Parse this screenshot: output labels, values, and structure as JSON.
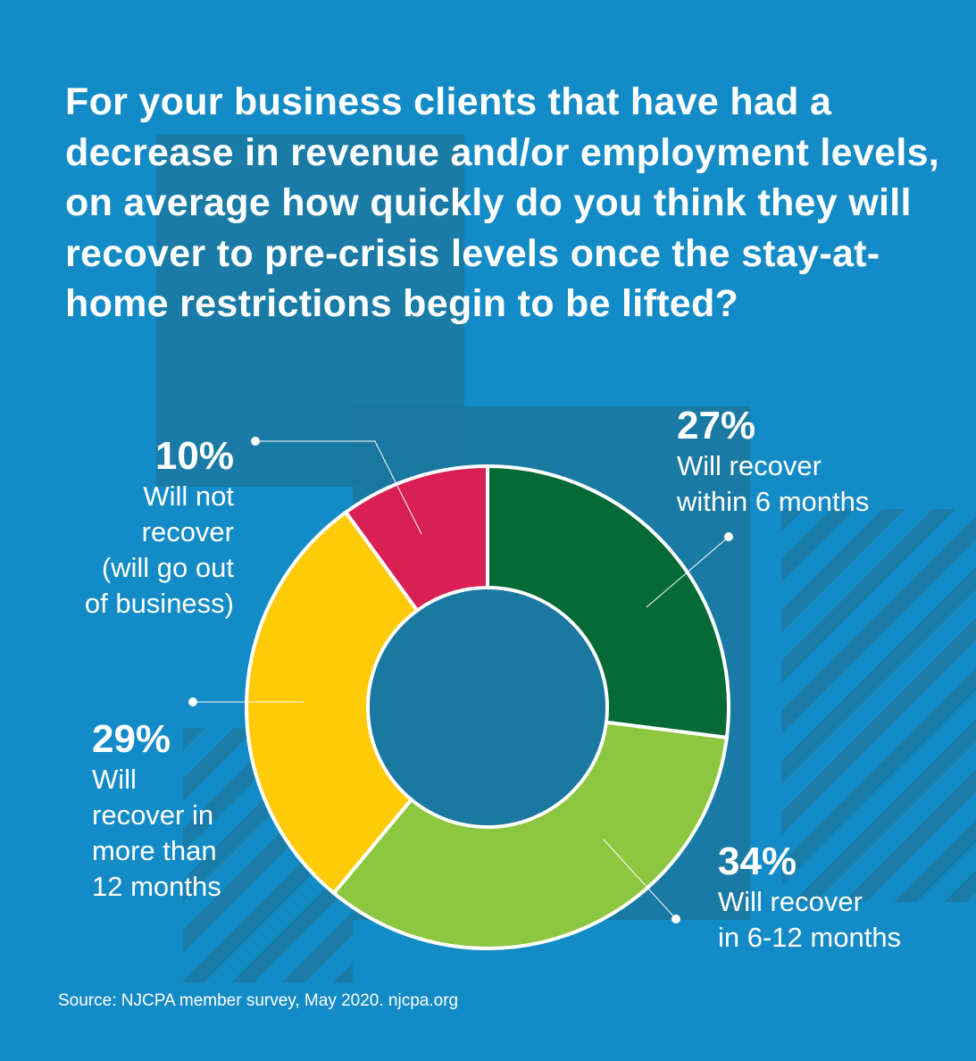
{
  "title": "For your business clients that have had a decrease in revenue and/or employment levels, on average how quickly do you think they will recover to pre-crisis levels once the stay-at-home restrictions begin to be lifted?",
  "source": "Source: NJCPA member survey, May 2020. njcpa.org",
  "chart_data": {
    "type": "pie",
    "subtype": "donut",
    "title": "For your business clients that have had a decrease in revenue and/or employment levels, on average how quickly do you think they will recover to pre-crisis levels once the stay-at-home restrictions begin to be lifted?",
    "slices": [
      {
        "label": "Will recover within 6 months",
        "value": 27,
        "pct_label": "27%",
        "color": "#066a37"
      },
      {
        "label": "Will recover in 6-12 months",
        "value": 34,
        "pct_label": "34%",
        "color": "#8dc63f"
      },
      {
        "label": "Will recover in more than 12 months",
        "value": 29,
        "pct_label": "29%",
        "color": "#ffcb08"
      },
      {
        "label": "Will not recover (will go out of business)",
        "value": 10,
        "pct_label": "10%",
        "color": "#da1f54"
      }
    ],
    "start": "top",
    "direction": "clockwise"
  },
  "labels": [
    {
      "pct": "27%",
      "text": "Will recover\nwithin 6 months"
    },
    {
      "pct": "34%",
      "text": "Will recover\nin 6-12 months"
    },
    {
      "pct": "29%",
      "text": "Will\nrecover in\nmore than\n12 months"
    },
    {
      "pct": "10%",
      "text": "Will not\nrecover\n(will go out\nof business)"
    }
  ],
  "colors": {
    "background": "#138bc6",
    "panel": "#1b78a0",
    "center": "#1b78a0"
  }
}
